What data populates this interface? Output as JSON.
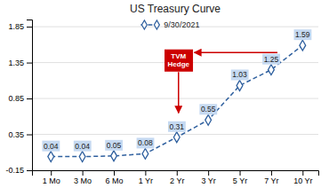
{
  "chart_data": {
    "type": "line",
    "title": "US Treasury Curve",
    "categories": [
      "1 Mo",
      "3 Mo",
      "6 Mo",
      "1 Yr",
      "2 Yr",
      "3 Yr",
      "5 Yr",
      "7 Yr",
      "10 Yr"
    ],
    "series": [
      {
        "name": "9/30/2021",
        "color": "#2E5F9E",
        "marker": "diamond",
        "line_style": "dashed",
        "values": [
          0.04,
          0.04,
          0.05,
          0.08,
          0.31,
          0.55,
          1.03,
          1.25,
          1.59
        ]
      }
    ],
    "ylim": [
      -0.15,
      1.95
    ],
    "yticks": [
      -0.15,
      0.35,
      0.85,
      1.35,
      1.85
    ],
    "grid": true,
    "legend": "top",
    "data_labels": true,
    "annotations": [
      "TVM\nHedge"
    ]
  }
}
